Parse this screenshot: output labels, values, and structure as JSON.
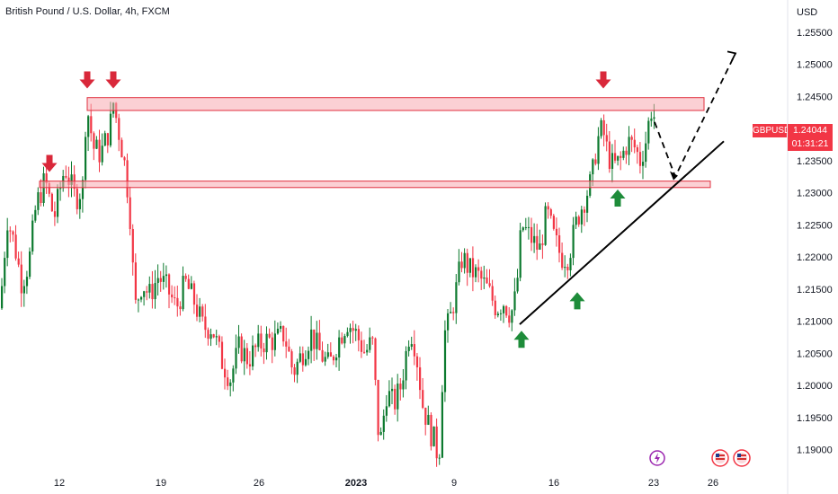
{
  "header": {
    "title_parts": [
      "British Pound / U.S. Dollar",
      "4h",
      "FXCM"
    ],
    "currency_label": "USD"
  },
  "price_tag": {
    "symbol": "GBPUSD",
    "price": "1.24044",
    "countdown": "01:31:21"
  },
  "colors": {
    "up": "#089981",
    "up_candle": "#0d7a2f",
    "down": "#f23645",
    "zone_fill": "#f7a9b0",
    "zone_stroke": "#e0303f",
    "arrow_down": "#d9283a",
    "arrow_up": "#1e8c3a",
    "trendline": "#000000",
    "axis_text": "#131722"
  },
  "chart_data": {
    "type": "candlestick",
    "symbol": "GBPUSD",
    "timeframe": "4h",
    "y_axis": {
      "min": 1.187,
      "max": 1.26,
      "ticks": [
        "1.19000",
        "1.19500",
        "1.20000",
        "1.20500",
        "1.21000",
        "1.21500",
        "1.22000",
        "1.22500",
        "1.23000",
        "1.23500",
        "1.24000",
        "1.24500",
        "1.25000",
        "1.25500"
      ]
    },
    "x_axis": {
      "ticks": [
        {
          "label": "12",
          "bold": false
        },
        {
          "label": "19",
          "bold": false
        },
        {
          "label": "26",
          "bold": false
        },
        {
          "label": "2023",
          "bold": true
        },
        {
          "label": "9",
          "bold": false
        },
        {
          "label": "16",
          "bold": false
        },
        {
          "label": "23",
          "bold": false
        },
        {
          "label": "26",
          "bold": false
        }
      ]
    },
    "path_waypoints": [
      [
        0,
        1.212
      ],
      [
        8,
        1.226
      ],
      [
        16,
        1.222
      ],
      [
        24,
        1.216
      ],
      [
        32,
        1.219
      ],
      [
        40,
        1.228
      ],
      [
        50,
        1.232
      ],
      [
        60,
        1.226
      ],
      [
        72,
        1.234
      ],
      [
        84,
        1.229
      ],
      [
        92,
        1.231
      ],
      [
        96,
        1.244
      ],
      [
        104,
        1.237
      ],
      [
        112,
        1.236
      ],
      [
        122,
        1.24
      ],
      [
        126,
        1.244
      ],
      [
        134,
        1.238
      ],
      [
        138,
        1.235
      ],
      [
        144,
        1.228
      ],
      [
        150,
        1.212
      ],
      [
        158,
        1.216
      ],
      [
        166,
        1.214
      ],
      [
        176,
        1.217
      ],
      [
        186,
        1.215
      ],
      [
        196,
        1.212
      ],
      [
        206,
        1.216
      ],
      [
        216,
        1.213
      ],
      [
        226,
        1.209
      ],
      [
        236,
        1.209
      ],
      [
        246,
        1.204
      ],
      [
        256,
        1.201
      ],
      [
        266,
        1.206
      ],
      [
        276,
        1.204
      ],
      [
        286,
        1.206
      ],
      [
        296,
        1.207
      ],
      [
        306,
        1.207
      ],
      [
        316,
        1.208
      ],
      [
        326,
        1.202
      ],
      [
        336,
        1.205
      ],
      [
        346,
        1.208
      ],
      [
        356,
        1.205
      ],
      [
        366,
        1.203
      ],
      [
        376,
        1.207
      ],
      [
        386,
        1.21
      ],
      [
        396,
        1.208
      ],
      [
        406,
        1.205
      ],
      [
        414,
        1.207
      ],
      [
        422,
        1.19
      ],
      [
        430,
        1.199
      ],
      [
        438,
        1.197
      ],
      [
        446,
        1.2
      ],
      [
        456,
        1.209
      ],
      [
        462,
        1.206
      ],
      [
        470,
        1.197
      ],
      [
        478,
        1.193
      ],
      [
        484,
        1.191
      ],
      [
        488,
        1.188
      ],
      [
        494,
        1.208
      ],
      [
        500,
        1.21
      ],
      [
        506,
        1.214
      ],
      [
        514,
        1.22
      ],
      [
        522,
        1.218
      ],
      [
        532,
        1.217
      ],
      [
        542,
        1.215
      ],
      [
        552,
        1.212
      ],
      [
        560,
        1.213
      ],
      [
        568,
        1.211
      ],
      [
        574,
        1.214
      ],
      [
        580,
        1.225
      ],
      [
        590,
        1.223
      ],
      [
        600,
        1.221
      ],
      [
        608,
        1.227
      ],
      [
        616,
        1.223
      ],
      [
        624,
        1.22
      ],
      [
        632,
        1.22
      ],
      [
        642,
        1.226
      ],
      [
        650,
        1.229
      ],
      [
        658,
        1.232
      ],
      [
        664,
        1.238
      ],
      [
        670,
        1.24
      ],
      [
        676,
        1.236
      ],
      [
        682,
        1.234
      ],
      [
        690,
        1.235
      ],
      [
        698,
        1.238
      ],
      [
        706,
        1.237
      ],
      [
        712,
        1.235
      ],
      [
        718,
        1.238
      ],
      [
        724,
        1.243
      ],
      [
        730,
        1.241
      ]
    ],
    "zones": [
      {
        "top": 1.2448,
        "bottom": 1.2428
      },
      {
        "top": 1.2318,
        "bottom": 1.2308
      }
    ],
    "trendline": {
      "from": [
        578,
        1.2095
      ],
      "to": [
        805,
        1.238
      ]
    },
    "projection": [
      [
        728,
        1.241
      ],
      [
        751,
        1.2325
      ],
      [
        818,
        1.2517
      ]
    ],
    "markers": {
      "down_arrows": [
        [
          97,
          1.2458
        ],
        [
          126,
          1.2458
        ],
        [
          55,
          1.2328
        ],
        [
          671,
          1.2458
        ]
      ],
      "up_arrows": [
        [
          580,
          1.2085
        ],
        [
          642,
          1.2145
        ],
        [
          687,
          1.2305
        ]
      ]
    },
    "last_price": 1.24044
  }
}
